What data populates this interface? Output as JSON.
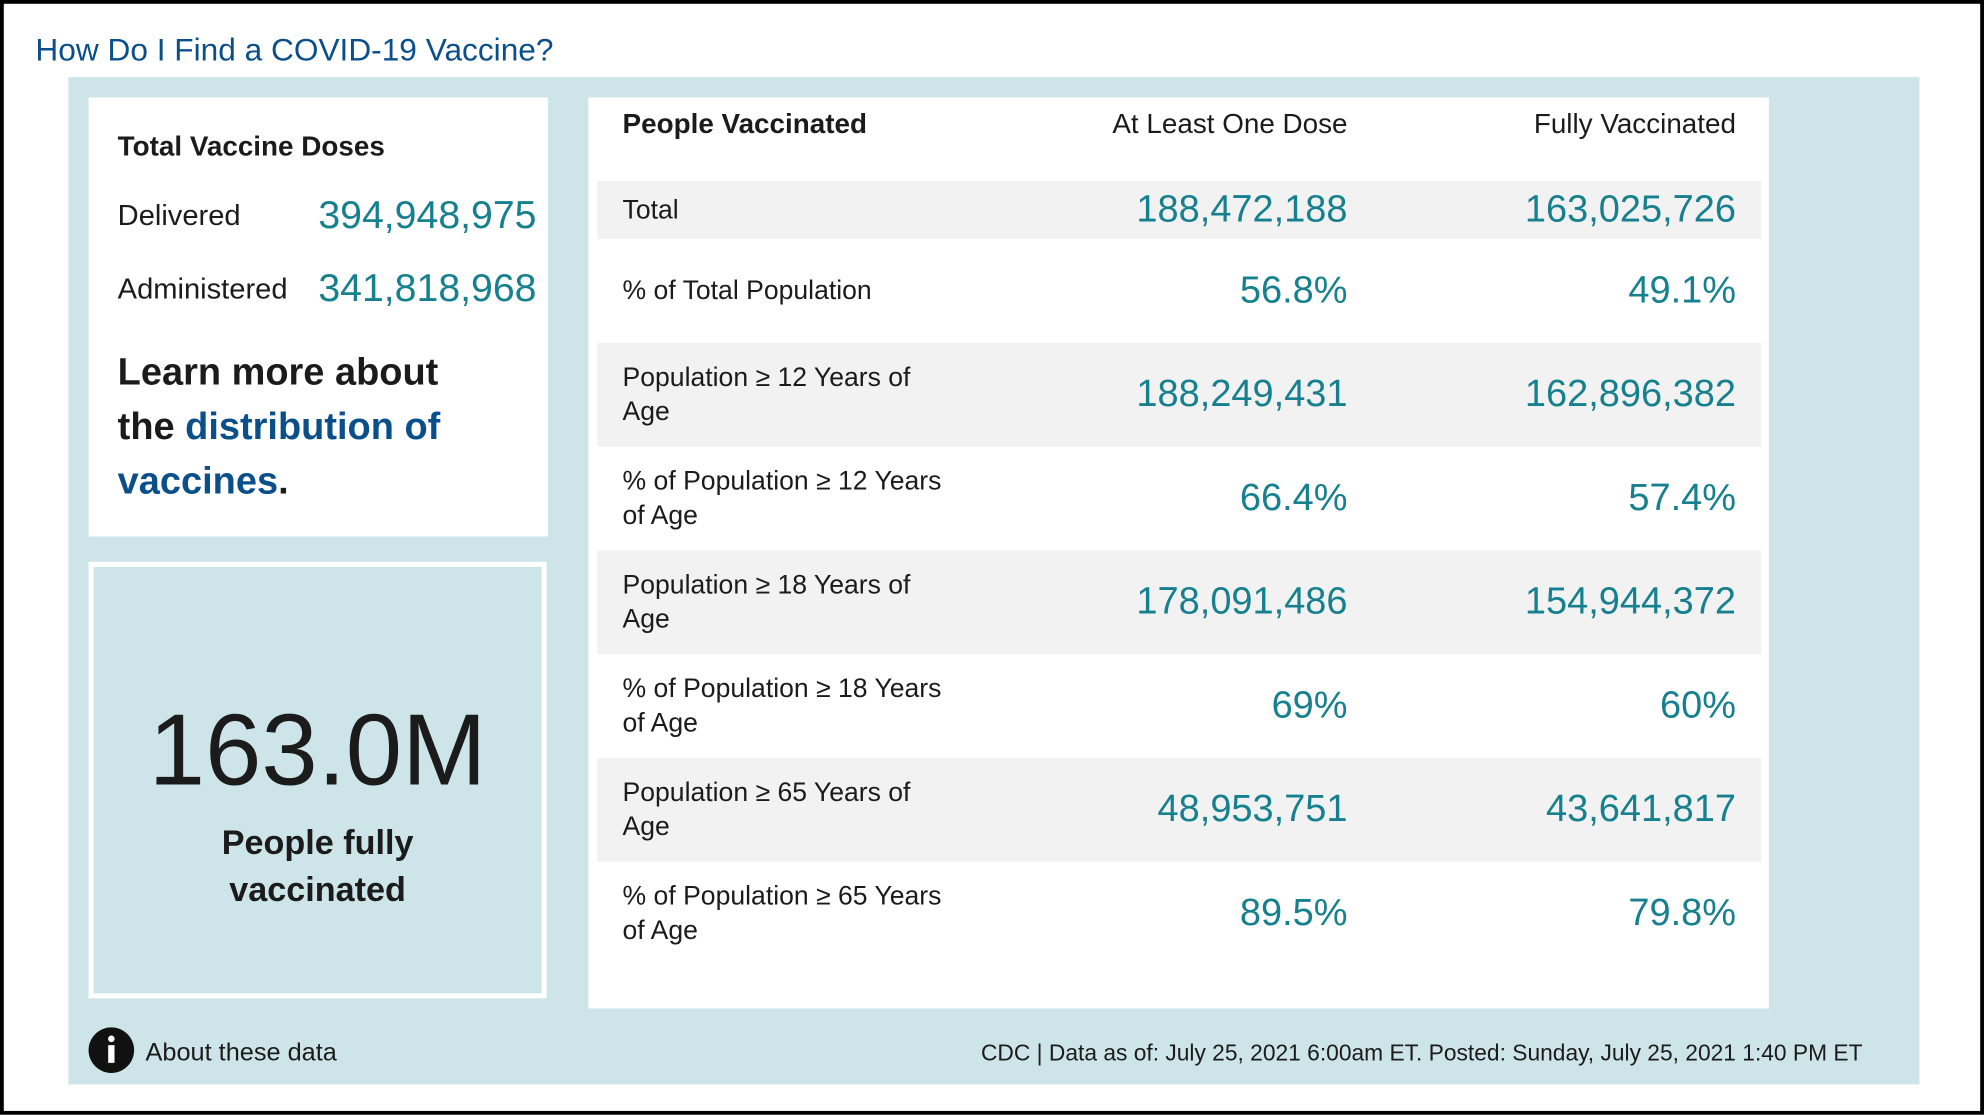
{
  "header": {
    "title": "How Do I Find a COVID-19 Vaccine?"
  },
  "doses": {
    "title": "Total Vaccine Doses",
    "rows": [
      [
        "Delivered",
        "394,948,975"
      ],
      [
        "Administered",
        "341,818,968"
      ]
    ]
  },
  "learn_more": {
    "prefix": "Learn more about the",
    "link": "distribution of vaccines",
    "suffix": "."
  },
  "highlight": {
    "value": "163.0M",
    "label": "People fully vaccinated"
  },
  "table": {
    "headers": [
      "People Vaccinated",
      "At Least One Dose",
      "Fully Vaccinated"
    ],
    "rows": [
      [
        "Total",
        "188,472,188",
        "163,025,726"
      ],
      [
        "% of Total Population",
        "56.8%",
        "49.1%"
      ],
      [
        "Population ≥ 12 Years of Age",
        "188,249,431",
        "162,896,382"
      ],
      [
        "% of Population ≥ 12 Years of Age",
        "66.4%",
        "57.4%"
      ],
      [
        "Population ≥ 18 Years of Age",
        "178,091,486",
        "154,944,372"
      ],
      [
        "% of Population ≥ 18 Years of Age",
        "69%",
        "60%"
      ],
      [
        "Population ≥ 65 Years of Age",
        "48,953,751",
        "43,641,817"
      ],
      [
        "% of Population ≥ 65 Years of Age",
        "89.5%",
        "79.8%"
      ]
    ]
  },
  "footer": {
    "about": "About these data",
    "source": "CDC | Data as of: July 25, 2021 6:00am ET. Posted: Sunday, July 25, 2021 1:40 PM ET"
  }
}
